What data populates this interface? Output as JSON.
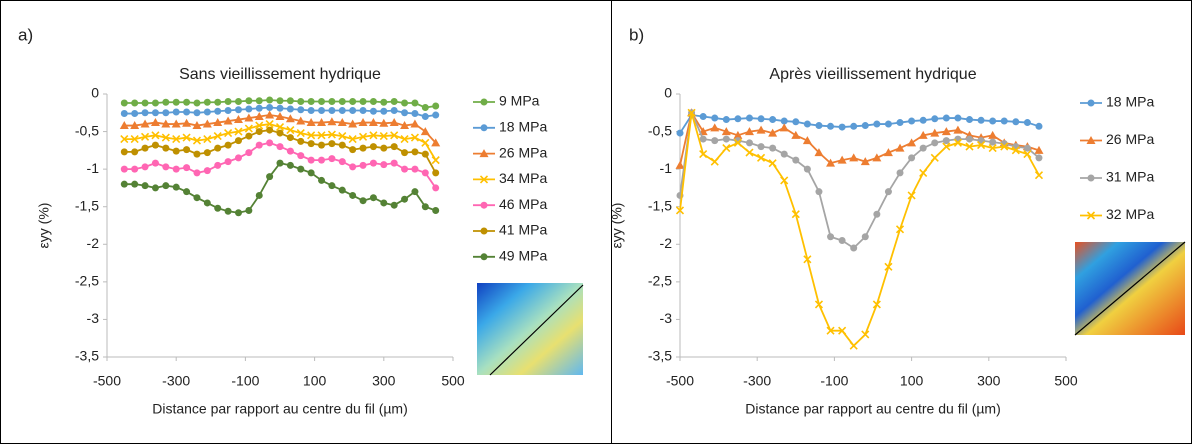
{
  "chart_data": [
    {
      "type": "line",
      "panel_label": "a)",
      "title": "Sans vieillissement hydrique",
      "xlabel": "Distance par rapport au centre du fil (µm)",
      "ylabel": "εyy (%)",
      "xlim": [
        -500,
        500
      ],
      "xticks": [
        -500,
        -300,
        -100,
        100,
        300,
        500
      ],
      "ylim": [
        -3.5,
        0
      ],
      "yticks": [
        0,
        {
          "value": -0.5,
          "label": "-0,5"
        },
        -1,
        {
          "value": -1.5,
          "label": "-1,5"
        },
        -2,
        {
          "value": -2.5,
          "label": "-2,5"
        },
        -3,
        {
          "value": -3.5,
          "label": "-3,5"
        }
      ],
      "legend": "right",
      "x": [
        -450,
        -420,
        -390,
        -360,
        -330,
        -300,
        -270,
        -240,
        -210,
        -180,
        -150,
        -120,
        -90,
        -60,
        -30,
        0,
        30,
        60,
        90,
        120,
        150,
        180,
        210,
        240,
        270,
        300,
        330,
        360,
        390,
        420,
        450
      ],
      "series": [
        {
          "name": "9 MPa",
          "color": "#70ad47",
          "marker": "circle",
          "values": [
            -0.12,
            -0.12,
            -0.12,
            -0.12,
            -0.11,
            -0.11,
            -0.11,
            -0.12,
            -0.11,
            -0.11,
            -0.1,
            -0.1,
            -0.09,
            -0.09,
            -0.08,
            -0.09,
            -0.09,
            -0.1,
            -0.1,
            -0.1,
            -0.1,
            -0.1,
            -0.1,
            -0.1,
            -0.1,
            -0.11,
            -0.1,
            -0.12,
            -0.12,
            -0.18,
            -0.16
          ]
        },
        {
          "name": "18 MPa",
          "color": "#5b9bd5",
          "marker": "circle",
          "values": [
            -0.26,
            -0.26,
            -0.25,
            -0.25,
            -0.25,
            -0.24,
            -0.24,
            -0.25,
            -0.24,
            -0.23,
            -0.22,
            -0.21,
            -0.2,
            -0.19,
            -0.18,
            -0.19,
            -0.2,
            -0.21,
            -0.22,
            -0.22,
            -0.22,
            -0.22,
            -0.22,
            -0.22,
            -0.23,
            -0.23,
            -0.22,
            -0.25,
            -0.26,
            -0.3,
            -0.28
          ]
        },
        {
          "name": "26 MPa",
          "color": "#ed7d31",
          "marker": "triangle",
          "values": [
            -0.42,
            -0.42,
            -0.4,
            -0.38,
            -0.4,
            -0.4,
            -0.39,
            -0.42,
            -0.4,
            -0.38,
            -0.36,
            -0.34,
            -0.32,
            -0.3,
            -0.28,
            -0.3,
            -0.33,
            -0.36,
            -0.38,
            -0.38,
            -0.37,
            -0.38,
            -0.4,
            -0.38,
            -0.38,
            -0.39,
            -0.38,
            -0.42,
            -0.4,
            -0.5,
            -0.65
          ]
        },
        {
          "name": "34 MPa",
          "color": "#ffc000",
          "marker": "x",
          "values": [
            -0.6,
            -0.6,
            -0.57,
            -0.55,
            -0.58,
            -0.6,
            -0.58,
            -0.62,
            -0.6,
            -0.56,
            -0.52,
            -0.5,
            -0.46,
            -0.42,
            -0.4,
            -0.44,
            -0.48,
            -0.52,
            -0.55,
            -0.55,
            -0.54,
            -0.56,
            -0.6,
            -0.57,
            -0.55,
            -0.56,
            -0.55,
            -0.6,
            -0.58,
            -0.65,
            -0.88
          ]
        },
        {
          "name": "46 MPa",
          "color": "#ff66b3",
          "marker": "circle",
          "values": [
            -1.0,
            -1.0,
            -0.97,
            -0.92,
            -0.97,
            -1.0,
            -0.98,
            -1.05,
            -1.02,
            -0.95,
            -0.9,
            -0.85,
            -0.78,
            -0.68,
            -0.65,
            -0.7,
            -0.76,
            -0.82,
            -0.88,
            -0.88,
            -0.86,
            -0.9,
            -0.97,
            -0.95,
            -0.92,
            -0.94,
            -0.92,
            -1.0,
            -1.0,
            -1.05,
            -1.25
          ]
        },
        {
          "name": "41 MPa",
          "color": "#bf9000",
          "marker": "circle",
          "values": [
            -0.77,
            -0.77,
            -0.72,
            -0.68,
            -0.72,
            -0.76,
            -0.74,
            -0.8,
            -0.78,
            -0.72,
            -0.68,
            -0.62,
            -0.56,
            -0.5,
            -0.48,
            -0.52,
            -0.58,
            -0.63,
            -0.66,
            -0.68,
            -0.66,
            -0.68,
            -0.74,
            -0.72,
            -0.7,
            -0.72,
            -0.7,
            -0.78,
            -0.77,
            -0.8,
            -1.05
          ]
        },
        {
          "name": "49 MPa",
          "color": "#548235",
          "marker": "circle",
          "values": [
            -1.2,
            -1.2,
            -1.22,
            -1.25,
            -1.22,
            -1.24,
            -1.3,
            -1.38,
            -1.45,
            -1.52,
            -1.56,
            -1.58,
            -1.55,
            -1.35,
            -1.1,
            -0.92,
            -0.95,
            -1.0,
            -1.05,
            -1.15,
            -1.22,
            -1.28,
            -1.35,
            -1.42,
            -1.38,
            -1.45,
            -1.48,
            -1.4,
            -1.3,
            -1.5,
            -1.55
          ]
        }
      ]
    },
    {
      "type": "line",
      "panel_label": "b)",
      "title": "Après vieillissement hydrique",
      "xlabel": "Distance par rapport au centre du fil (µm)",
      "ylabel": "εyy (%)",
      "xlim": [
        -500,
        500
      ],
      "xticks": [
        -500,
        -300,
        -100,
        100,
        300,
        500
      ],
      "ylim": [
        -3.5,
        0
      ],
      "yticks": [
        0,
        {
          "value": -0.5,
          "label": "-0,5"
        },
        -1,
        {
          "value": -1.5,
          "label": "-1,5"
        },
        -2,
        {
          "value": -2.5,
          "label": "-2,5"
        },
        -3,
        {
          "value": -3.5,
          "label": "-3,5"
        }
      ],
      "legend": "right",
      "x": [
        -500,
        -470,
        -440,
        -410,
        -380,
        -350,
        -320,
        -290,
        -260,
        -230,
        -200,
        -170,
        -140,
        -110,
        -80,
        -50,
        -20,
        10,
        40,
        70,
        100,
        130,
        160,
        190,
        220,
        250,
        280,
        310,
        340,
        370,
        400,
        430
      ],
      "series": [
        {
          "name": "18 MPa",
          "color": "#5b9bd5",
          "marker": "circle",
          "values": [
            -0.52,
            -0.28,
            -0.3,
            -0.32,
            -0.34,
            -0.33,
            -0.32,
            -0.33,
            -0.34,
            -0.36,
            -0.37,
            -0.4,
            -0.42,
            -0.43,
            -0.44,
            -0.43,
            -0.42,
            -0.4,
            -0.4,
            -0.38,
            -0.36,
            -0.35,
            -0.33,
            -0.32,
            -0.32,
            -0.34,
            -0.35,
            -0.36,
            -0.36,
            -0.37,
            -0.38,
            -0.43
          ]
        },
        {
          "name": "26 MPa",
          "color": "#ed7d31",
          "marker": "triangle",
          "values": [
            -0.95,
            -0.25,
            -0.5,
            -0.45,
            -0.5,
            -0.55,
            -0.5,
            -0.48,
            -0.52,
            -0.45,
            -0.55,
            -0.62,
            -0.78,
            -0.92,
            -0.88,
            -0.85,
            -0.9,
            -0.85,
            -0.78,
            -0.72,
            -0.65,
            -0.55,
            -0.52,
            -0.5,
            -0.48,
            -0.55,
            -0.58,
            -0.55,
            -0.65,
            -0.68,
            -0.7,
            -0.75
          ]
        },
        {
          "name": "31 MPa",
          "color": "#a5a5a5",
          "marker": "circle",
          "values": [
            -1.35,
            -0.25,
            -0.6,
            -0.62,
            -0.6,
            -0.62,
            -0.65,
            -0.7,
            -0.72,
            -0.8,
            -0.88,
            -1.0,
            -1.3,
            -1.9,
            -1.95,
            -2.05,
            -1.9,
            -1.6,
            -1.3,
            -1.05,
            -0.85,
            -0.72,
            -0.65,
            -0.62,
            -0.6,
            -0.6,
            -0.62,
            -0.64,
            -0.66,
            -0.7,
            -0.72,
            -0.85
          ]
        },
        {
          "name": "32 MPa",
          "color": "#ffc000",
          "marker": "x",
          "values": [
            -1.55,
            -0.25,
            -0.8,
            -0.9,
            -0.72,
            -0.65,
            -0.78,
            -0.85,
            -0.92,
            -1.15,
            -1.6,
            -2.2,
            -2.8,
            -3.15,
            -3.15,
            -3.35,
            -3.2,
            -2.8,
            -2.3,
            -1.8,
            -1.35,
            -1.05,
            -0.85,
            -0.7,
            -0.65,
            -0.7,
            -0.68,
            -0.72,
            -0.7,
            -0.75,
            -0.8,
            -1.08
          ]
        }
      ]
    }
  ]
}
